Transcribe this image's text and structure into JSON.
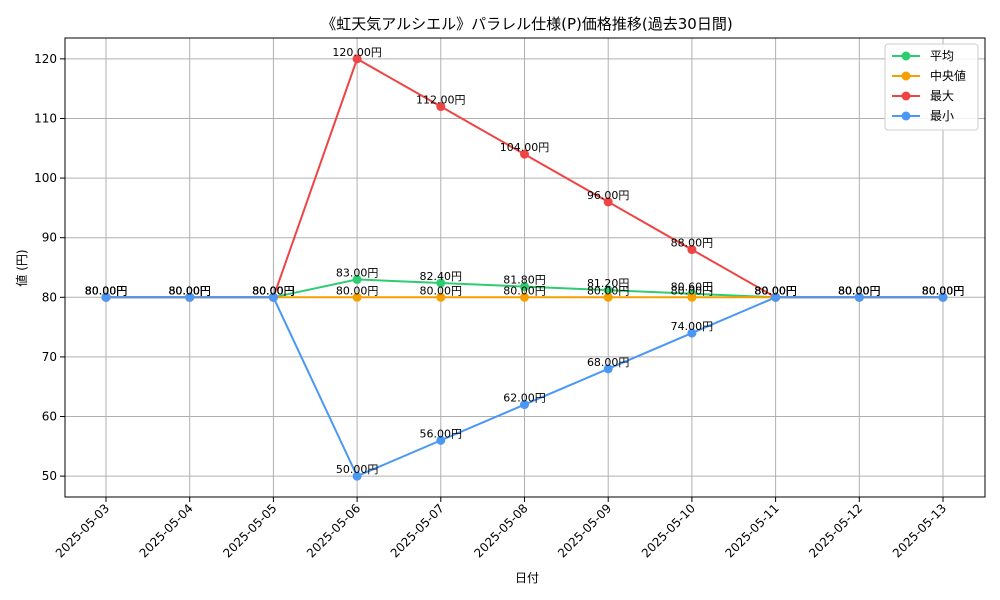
{
  "chart_data": {
    "type": "line",
    "title": "《虹天気アルシエル》パラレル仕様(P)価格推移(過去30日間)",
    "xlabel": "日付",
    "ylabel": "値 (円)",
    "categories": [
      "2025-05-03",
      "2025-05-04",
      "2025-05-05",
      "2025-05-06",
      "2025-05-07",
      "2025-05-08",
      "2025-05-09",
      "2025-05-10",
      "2025-05-11",
      "2025-05-12",
      "2025-05-13"
    ],
    "ylim": [
      46.5,
      123.5
    ],
    "yticks": [
      50,
      60,
      70,
      80,
      90,
      100,
      110,
      120
    ],
    "grid": true,
    "legend_position": "top-right",
    "series": [
      {
        "name": "平均",
        "color": "#2ecc71",
        "values": [
          80,
          80,
          80,
          83,
          82.4,
          81.8,
          81.2,
          80.6,
          80,
          80,
          80
        ],
        "labels": [
          "80.00円",
          "80.00円",
          "80.00円",
          "83.00円",
          "82.40円",
          "81.80円",
          "81.20円",
          "80.60円",
          "80.00円",
          "80.00円",
          "80.00円"
        ]
      },
      {
        "name": "中央値",
        "color": "#f5a000",
        "values": [
          80,
          80,
          80,
          80,
          80,
          80,
          80,
          80,
          80,
          80,
          80
        ],
        "labels": [
          "80.00円",
          "80.00円",
          "80.00円",
          "80.00円",
          "80.00円",
          "80.00円",
          "80.00円",
          "80.00円",
          "80.00円",
          "80.00円",
          "80.00円"
        ]
      },
      {
        "name": "最大",
        "color": "#ef4444",
        "values": [
          80,
          80,
          80,
          120,
          112,
          104,
          96,
          88,
          80,
          80,
          80
        ],
        "labels": [
          "80.00円",
          "80.00円",
          "80.00円",
          "120.00円",
          "112.00円",
          "104.00円",
          "96.00円",
          "88.00円",
          "80.00円",
          "80.00円",
          "80.00円"
        ]
      },
      {
        "name": "最小",
        "color": "#4a97f5",
        "values": [
          80,
          80,
          80,
          50,
          56,
          62,
          68,
          74,
          80,
          80,
          80
        ],
        "labels": [
          "80.00円",
          "80.00円",
          "80.00円",
          "50.00円",
          "56.00円",
          "62.00円",
          "68.00円",
          "74.00円",
          "80.00円",
          "80.00円",
          "80.00円"
        ]
      }
    ]
  }
}
